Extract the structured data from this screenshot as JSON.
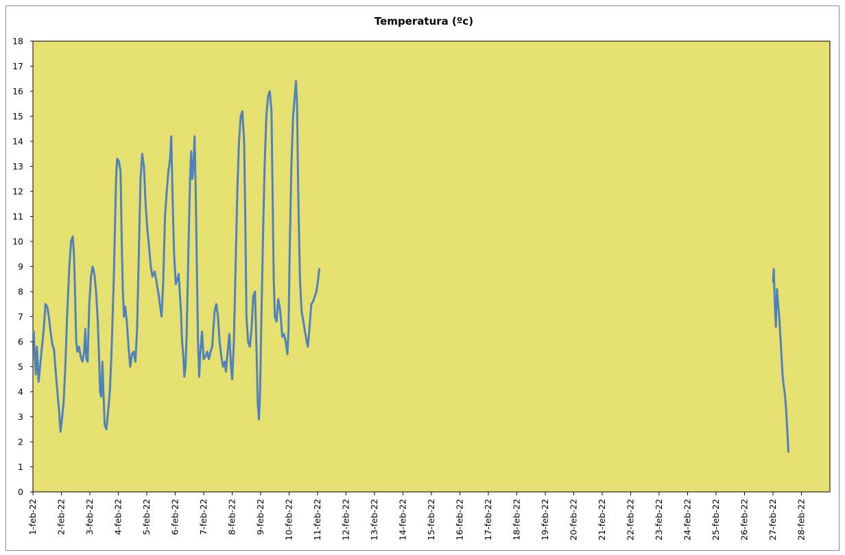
{
  "chart_data": {
    "type": "line",
    "title": "Temperatura (ºc)",
    "xlabel": "",
    "ylabel": "",
    "ylim": [
      0,
      18
    ],
    "yticks": [
      0,
      1,
      2,
      3,
      4,
      5,
      6,
      7,
      8,
      9,
      10,
      11,
      12,
      13,
      14,
      15,
      16,
      17,
      18
    ],
    "xlim": [
      1,
      29
    ],
    "categories": [
      "1-feb-22",
      "2-feb-22",
      "3-feb-22",
      "4-feb-22",
      "5-feb-22",
      "6-feb-22",
      "7-feb-22",
      "8-feb-22",
      "9-feb-22",
      "10-feb-22",
      "11-feb-22",
      "12-feb-22",
      "13-feb-22",
      "14-feb-22",
      "15-feb-22",
      "16-feb-22",
      "17-feb-22",
      "18-feb-22",
      "19-feb-22",
      "20-feb-22",
      "21-feb-22",
      "22-feb-22",
      "23-feb-22",
      "24-feb-22",
      "25-feb-22",
      "26-feb-22",
      "27-feb-22",
      "28-feb-22"
    ],
    "grid": false,
    "legend": "none",
    "colors": {
      "plot_background": "#e6e070",
      "line": "#4f81bd",
      "axis": "#000000"
    },
    "series": [
      {
        "name": "",
        "segments": [
          [
            [
              1.0,
              6.3
            ],
            [
              1.03,
              6.4
            ],
            [
              1.06,
              5.5
            ],
            [
              1.1,
              4.7
            ],
            [
              1.14,
              5.8
            ],
            [
              1.2,
              4.4
            ],
            [
              1.25,
              5.0
            ],
            [
              1.3,
              5.6
            ],
            [
              1.38,
              6.5
            ],
            [
              1.44,
              7.5
            ],
            [
              1.5,
              7.4
            ],
            [
              1.56,
              7.0
            ],
            [
              1.62,
              6.4
            ],
            [
              1.68,
              5.9
            ],
            [
              1.74,
              5.7
            ],
            [
              1.8,
              4.8
            ],
            [
              1.86,
              4.0
            ],
            [
              1.92,
              3.2
            ],
            [
              1.97,
              2.4
            ],
            [
              2.02,
              2.9
            ],
            [
              2.08,
              3.6
            ],
            [
              2.14,
              5.0
            ],
            [
              2.2,
              7.0
            ],
            [
              2.28,
              9.0
            ],
            [
              2.34,
              10.0
            ],
            [
              2.4,
              10.2
            ],
            [
              2.44,
              9.5
            ],
            [
              2.48,
              8.0
            ],
            [
              2.52,
              6.0
            ],
            [
              2.56,
              5.6
            ],
            [
              2.62,
              5.8
            ],
            [
              2.68,
              5.4
            ],
            [
              2.74,
              5.2
            ],
            [
              2.8,
              5.6
            ],
            [
              2.84,
              6.5
            ],
            [
              2.88,
              5.3
            ],
            [
              2.92,
              5.2
            ],
            [
              2.98,
              7.5
            ],
            [
              3.04,
              8.6
            ],
            [
              3.1,
              9.0
            ],
            [
              3.16,
              8.7
            ],
            [
              3.22,
              8.0
            ],
            [
              3.28,
              6.8
            ],
            [
              3.32,
              5.5
            ],
            [
              3.36,
              4.0
            ],
            [
              3.4,
              3.8
            ],
            [
              3.44,
              5.2
            ],
            [
              3.48,
              3.9
            ],
            [
              3.52,
              2.7
            ],
            [
              3.58,
              2.5
            ],
            [
              3.64,
              3.2
            ],
            [
              3.7,
              4.0
            ],
            [
              3.76,
              5.5
            ],
            [
              3.84,
              8.5
            ],
            [
              3.92,
              12.5
            ],
            [
              3.96,
              13.3
            ],
            [
              4.02,
              13.2
            ],
            [
              4.08,
              12.8
            ],
            [
              4.12,
              10.0
            ],
            [
              4.16,
              8.0
            ],
            [
              4.2,
              7.0
            ],
            [
              4.24,
              7.4
            ],
            [
              4.3,
              6.8
            ],
            [
              4.36,
              5.8
            ],
            [
              4.42,
              5.0
            ],
            [
              4.48,
              5.5
            ],
            [
              4.54,
              5.6
            ],
            [
              4.6,
              5.2
            ],
            [
              4.66,
              6.5
            ],
            [
              4.72,
              9.5
            ],
            [
              4.78,
              12.5
            ],
            [
              4.84,
              13.5
            ],
            [
              4.9,
              13.0
            ],
            [
              4.96,
              11.5
            ],
            [
              5.02,
              10.5
            ],
            [
              5.08,
              9.8
            ],
            [
              5.14,
              9.0
            ],
            [
              5.2,
              8.6
            ],
            [
              5.28,
              8.8
            ],
            [
              5.34,
              8.4
            ],
            [
              5.4,
              8.0
            ],
            [
              5.46,
              7.5
            ],
            [
              5.52,
              7.0
            ],
            [
              5.58,
              8.5
            ],
            [
              5.64,
              11.0
            ],
            [
              5.7,
              12.0
            ],
            [
              5.76,
              12.8
            ],
            [
              5.82,
              13.3
            ],
            [
              5.86,
              14.2
            ],
            [
              5.9,
              12.0
            ],
            [
              5.96,
              9.5
            ],
            [
              6.02,
              8.3
            ],
            [
              6.08,
              8.5
            ],
            [
              6.12,
              8.7
            ],
            [
              6.16,
              8.0
            ],
            [
              6.2,
              7.2
            ],
            [
              6.24,
              6.0
            ],
            [
              6.28,
              5.5
            ],
            [
              6.32,
              4.6
            ],
            [
              6.36,
              5.0
            ],
            [
              6.4,
              6.2
            ],
            [
              6.46,
              9.5
            ],
            [
              6.52,
              12.5
            ],
            [
              6.56,
              13.6
            ],
            [
              6.6,
              12.5
            ],
            [
              6.64,
              13.0
            ],
            [
              6.68,
              14.2
            ],
            [
              6.72,
              12.0
            ],
            [
              6.76,
              9.0
            ],
            [
              6.8,
              6.0
            ],
            [
              6.84,
              4.6
            ],
            [
              6.88,
              5.5
            ],
            [
              6.94,
              6.4
            ],
            [
              7.0,
              5.3
            ],
            [
              7.06,
              5.4
            ],
            [
              7.12,
              5.6
            ],
            [
              7.18,
              5.3
            ],
            [
              7.24,
              5.6
            ],
            [
              7.3,
              5.8
            ],
            [
              7.34,
              6.5
            ],
            [
              7.38,
              7.2
            ],
            [
              7.44,
              7.5
            ],
            [
              7.5,
              7.0
            ],
            [
              7.56,
              6.0
            ],
            [
              7.62,
              5.4
            ],
            [
              7.68,
              5.0
            ],
            [
              7.74,
              5.2
            ],
            [
              7.78,
              4.8
            ],
            [
              7.84,
              5.6
            ],
            [
              7.9,
              6.3
            ],
            [
              7.96,
              5.0
            ],
            [
              8.0,
              4.5
            ],
            [
              8.06,
              6.0
            ],
            [
              8.12,
              9.0
            ],
            [
              8.18,
              12.0
            ],
            [
              8.24,
              14.0
            ],
            [
              8.3,
              15.0
            ],
            [
              8.36,
              15.2
            ],
            [
              8.42,
              14.0
            ],
            [
              8.46,
              11.0
            ],
            [
              8.5,
              7.0
            ],
            [
              8.56,
              6.0
            ],
            [
              8.62,
              5.8
            ],
            [
              8.68,
              6.5
            ],
            [
              8.74,
              7.8
            ],
            [
              8.8,
              8.0
            ],
            [
              8.86,
              5.5
            ],
            [
              8.9,
              3.5
            ],
            [
              8.94,
              2.9
            ],
            [
              8.98,
              4.0
            ],
            [
              9.02,
              6.5
            ],
            [
              9.08,
              10.0
            ],
            [
              9.14,
              13.0
            ],
            [
              9.2,
              15.0
            ],
            [
              9.26,
              15.8
            ],
            [
              9.32,
              16.0
            ],
            [
              9.38,
              15.2
            ],
            [
              9.42,
              12.0
            ],
            [
              9.46,
              8.5
            ],
            [
              9.5,
              7.0
            ],
            [
              9.56,
              6.8
            ],
            [
              9.62,
              7.7
            ],
            [
              9.68,
              7.3
            ],
            [
              9.72,
              6.8
            ],
            [
              9.76,
              6.2
            ],
            [
              9.82,
              6.3
            ],
            [
              9.88,
              6.0
            ],
            [
              9.94,
              5.5
            ],
            [
              9.98,
              6.5
            ],
            [
              10.02,
              9.5
            ],
            [
              10.08,
              13.0
            ],
            [
              10.14,
              15.0
            ],
            [
              10.2,
              15.8
            ],
            [
              10.24,
              16.4
            ],
            [
              10.28,
              15.5
            ],
            [
              10.32,
              12.0
            ],
            [
              10.38,
              8.5
            ],
            [
              10.44,
              7.2
            ],
            [
              10.5,
              6.8
            ],
            [
              10.56,
              6.4
            ],
            [
              10.62,
              6.0
            ],
            [
              10.66,
              5.8
            ],
            [
              10.72,
              6.6
            ],
            [
              10.78,
              7.5
            ],
            [
              10.84,
              7.6
            ],
            [
              10.9,
              7.8
            ],
            [
              10.96,
              8.0
            ],
            [
              11.0,
              8.3
            ],
            [
              11.06,
              8.9
            ]
          ],
          [
            [
              27.0,
              8.4
            ],
            [
              27.03,
              8.9
            ],
            [
              27.06,
              7.6
            ],
            [
              27.1,
              6.6
            ],
            [
              27.14,
              8.1
            ],
            [
              27.18,
              7.5
            ],
            [
              27.22,
              7.0
            ],
            [
              27.26,
              6.2
            ],
            [
              27.3,
              5.4
            ],
            [
              27.34,
              4.6
            ],
            [
              27.38,
              4.2
            ],
            [
              27.42,
              3.9
            ],
            [
              27.46,
              3.3
            ],
            [
              27.5,
              2.5
            ],
            [
              27.54,
              1.6
            ]
          ]
        ]
      }
    ]
  }
}
